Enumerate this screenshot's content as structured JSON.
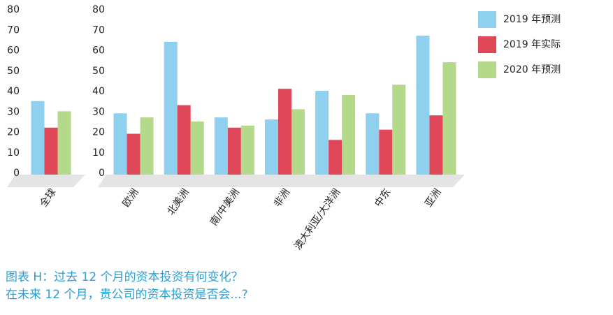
{
  "chart_data": [
    {
      "type": "bar",
      "categories": [
        "全球"
      ],
      "series": [
        {
          "name": "2019 年预测",
          "color": "#8fd0ee",
          "values": [
            36
          ]
        },
        {
          "name": "2019 年实际",
          "color": "#e0485a",
          "values": [
            23
          ]
        },
        {
          "name": "2020 年预测",
          "color": "#b5d98a",
          "values": [
            31
          ]
        }
      ],
      "ylim": [
        0,
        80
      ],
      "yticks": [
        0,
        10,
        20,
        30,
        40,
        50,
        60,
        70,
        80
      ]
    },
    {
      "type": "bar",
      "categories": [
        "欧洲",
        "北美洲",
        "南/中美洲",
        "非洲",
        "澳大利亚/大洋洲",
        "中东",
        "亚洲"
      ],
      "series": [
        {
          "name": "2019 年预测",
          "color": "#8fd0ee",
          "values": [
            30,
            65,
            28,
            27,
            41,
            30,
            68
          ]
        },
        {
          "name": "2019 年实际",
          "color": "#e0485a",
          "values": [
            20,
            34,
            23,
            42,
            17,
            22,
            29
          ]
        },
        {
          "name": "2020 年预测",
          "color": "#b5d98a",
          "values": [
            28,
            26,
            24,
            32,
            39,
            44,
            55
          ]
        }
      ],
      "ylim": [
        0,
        80
      ],
      "yticks": [
        0,
        10,
        20,
        30,
        40,
        50,
        60,
        70,
        80
      ]
    }
  ],
  "caption": [
    "图表 H：过去 12 个月的资本投资有何变化？",
    "在未来 12 个月，贵公司的资本投资是否会...?"
  ]
}
